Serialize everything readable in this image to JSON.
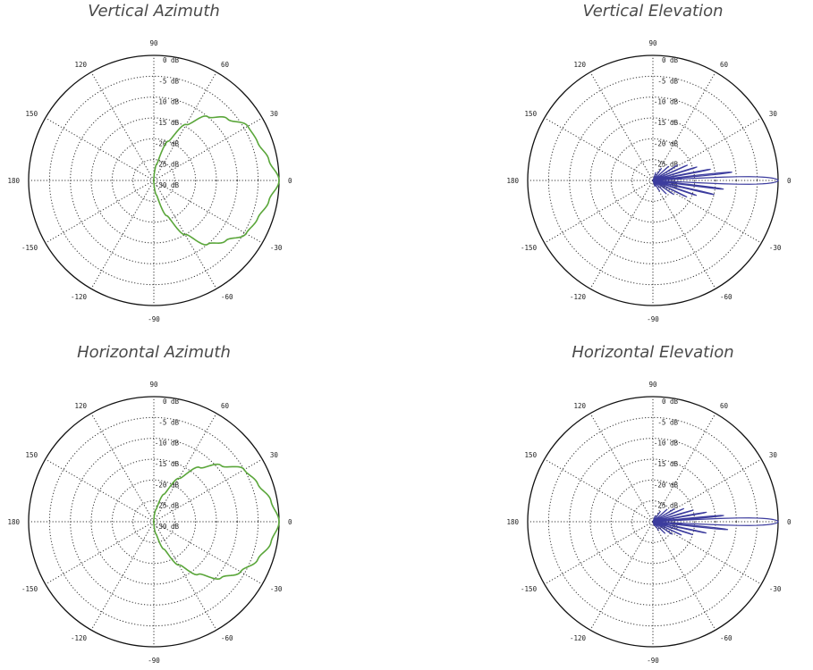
{
  "chart_data": [
    {
      "type": "polar",
      "title": "Vertical Azimuth",
      "radial_unit": "dB",
      "radial_range": [
        -30,
        0
      ],
      "ring_labels": [
        "0 dB",
        "-5 dB",
        "-10 dB",
        "-15 dB",
        "-20 dB",
        "-25 dB",
        "-30 dB"
      ],
      "angle_labels": [
        "90",
        "60",
        "30",
        "0",
        "-30",
        "-60",
        "-90",
        "-120",
        "-150",
        "180",
        "150",
        "120"
      ],
      "grid": true,
      "color": "#5aa63a",
      "pattern": {
        "style": "smooth",
        "angles_deg": [
          -100,
          -90,
          -80,
          -70,
          -60,
          -50,
          -40,
          -30,
          -20,
          -10,
          0,
          10,
          20,
          30,
          40,
          50,
          60,
          70,
          80,
          90,
          100
        ],
        "gain_db": [
          -30,
          -29.5,
          -26.5,
          -21,
          -15,
          -10,
          -7.5,
          -4.5,
          -3.5,
          -2,
          0,
          -2,
          -3.5,
          -4,
          -7,
          -10,
          -14.5,
          -20,
          -26,
          -29.5,
          -30
        ]
      }
    },
    {
      "type": "polar",
      "title": "Vertical Elevation",
      "radial_unit": "dB",
      "radial_range": [
        -30,
        0
      ],
      "ring_labels": [
        "0 dB",
        "-5 dB",
        "-10 dB",
        "-15 dB",
        "-20 dB",
        "-25 dB",
        "-30 dB"
      ],
      "angle_labels": [
        "90",
        "60",
        "30",
        "0",
        "-30",
        "-60",
        "-90",
        "-120",
        "-150",
        "180",
        "150",
        "120"
      ],
      "grid": true,
      "color": "#3c3c9e",
      "pattern": {
        "style": "lobes",
        "main_lobe": {
          "angle_deg": 0,
          "gain_db": 0,
          "half_width_deg": 3.2
        },
        "side_lobes": [
          {
            "angle_deg": 6,
            "gain_db": -11
          },
          {
            "angle_deg": -7,
            "gain_db": -13
          },
          {
            "angle_deg": 11,
            "gain_db": -16
          },
          {
            "angle_deg": -13,
            "gain_db": -15
          },
          {
            "angle_deg": 17,
            "gain_db": -19
          },
          {
            "angle_deg": -19,
            "gain_db": -19
          },
          {
            "angle_deg": 24,
            "gain_db": -21
          },
          {
            "angle_deg": -26,
            "gain_db": -21
          },
          {
            "angle_deg": 32,
            "gain_db": -23
          },
          {
            "angle_deg": -34,
            "gain_db": -24
          },
          {
            "angle_deg": 42,
            "gain_db": -25
          },
          {
            "angle_deg": -45,
            "gain_db": -25.5
          },
          {
            "angle_deg": 55,
            "gain_db": -26.5
          },
          {
            "angle_deg": -58,
            "gain_db": -27
          },
          {
            "angle_deg": 70,
            "gain_db": -28
          },
          {
            "angle_deg": -72,
            "gain_db": -28.5
          }
        ]
      }
    },
    {
      "type": "polar",
      "title": "Horizontal Azimuth",
      "radial_unit": "dB",
      "radial_range": [
        -30,
        0
      ],
      "ring_labels": [
        "0 dB",
        "-5 dB",
        "-10 dB",
        "-15 dB",
        "-20 dB",
        "-25 dB",
        "-30 dB"
      ],
      "angle_labels": [
        "90",
        "60",
        "30",
        "0",
        "-30",
        "-60",
        "-90",
        "-120",
        "-150",
        "180",
        "150",
        "120"
      ],
      "grid": true,
      "color": "#5aa63a",
      "pattern": {
        "style": "smooth",
        "angles_deg": [
          -100,
          -90,
          -80,
          -70,
          -60,
          -50,
          -40,
          -30,
          -20,
          -10,
          0,
          10,
          20,
          30,
          40,
          50,
          60,
          70,
          80,
          90,
          100
        ],
        "gain_db": [
          -30,
          -29.5,
          -27,
          -23,
          -18,
          -13.5,
          -9,
          -6,
          -3.5,
          -1.5,
          0,
          -1.5,
          -3.5,
          -5,
          -9,
          -13,
          -18,
          -23,
          -27,
          -29.5,
          -30
        ]
      }
    },
    {
      "type": "polar",
      "title": "Horizontal Elevation",
      "radial_unit": "dB",
      "radial_range": [
        -30,
        0
      ],
      "ring_labels": [
        "0 dB",
        "-5 dB",
        "-10 dB",
        "-15 dB",
        "-20 dB",
        "-25 dB",
        "-30 dB"
      ],
      "angle_labels": [
        "90",
        "60",
        "30",
        "0",
        "-30",
        "-60",
        "-90",
        "-120",
        "-150",
        "180",
        "150",
        "120"
      ],
      "grid": true,
      "color": "#3c3c9e",
      "pattern": {
        "style": "lobes",
        "main_lobe": {
          "angle_deg": 0,
          "gain_db": 0,
          "half_width_deg": 3.2
        },
        "side_lobes": [
          {
            "angle_deg": 5,
            "gain_db": -13
          },
          {
            "angle_deg": -6,
            "gain_db": -12
          },
          {
            "angle_deg": 10,
            "gain_db": -17
          },
          {
            "angle_deg": -12,
            "gain_db": -17
          },
          {
            "angle_deg": 16,
            "gain_db": -20
          },
          {
            "angle_deg": -18,
            "gain_db": -20
          },
          {
            "angle_deg": 23,
            "gain_db": -22
          },
          {
            "angle_deg": -25,
            "gain_db": -22.5
          },
          {
            "angle_deg": 31,
            "gain_db": -24
          },
          {
            "angle_deg": -33,
            "gain_db": -24.5
          },
          {
            "angle_deg": 41,
            "gain_db": -25.5
          },
          {
            "angle_deg": -44,
            "gain_db": -26
          },
          {
            "angle_deg": 54,
            "gain_db": -27
          },
          {
            "angle_deg": -57,
            "gain_db": -27.5
          },
          {
            "angle_deg": 69,
            "gain_db": -28.5
          },
          {
            "angle_deg": -71,
            "gain_db": -29
          }
        ]
      }
    }
  ]
}
